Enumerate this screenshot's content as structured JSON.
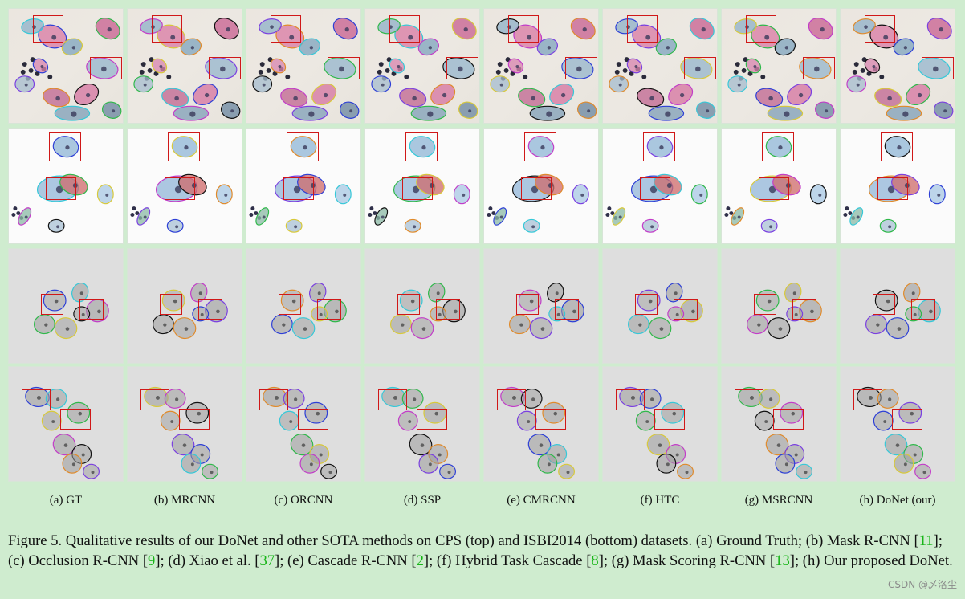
{
  "labels": [
    "(a) GT",
    "(b) MRCNN",
    "(c) ORCNN",
    "(d) SSP",
    "(e) CMRCNN",
    "(f) HTC",
    "(g) MSRCNN",
    "(h) DoNet (our)"
  ],
  "caption": {
    "p1": "Figure 5. Qualitative results of our DoNet and other SOTA methods on CPS (top) and ISBI2014 (bottom) datasets. (a) Ground Truth; (b) Mask R-CNN [",
    "r1": "11",
    "p2": "]; (c) Occlusion R-CNN [",
    "r2": "9",
    "p3": "]; (d) Xiao et al. [",
    "r3": "37",
    "p4": "]; (e) Cascade R-CNN [",
    "r4": "2",
    "p5": "]; (f) Hybrid Task Cascade [",
    "r5": "8",
    "p6": "]; (g) Mask Scoring R-CNN [",
    "r6": "13",
    "p7": "]; (h) Our proposed DoNet."
  },
  "watermark": "CSDN @乄洛尘",
  "colors": {
    "background": "#cfeccf",
    "highlight_box": "#d01818",
    "reference": "#18b518"
  }
}
